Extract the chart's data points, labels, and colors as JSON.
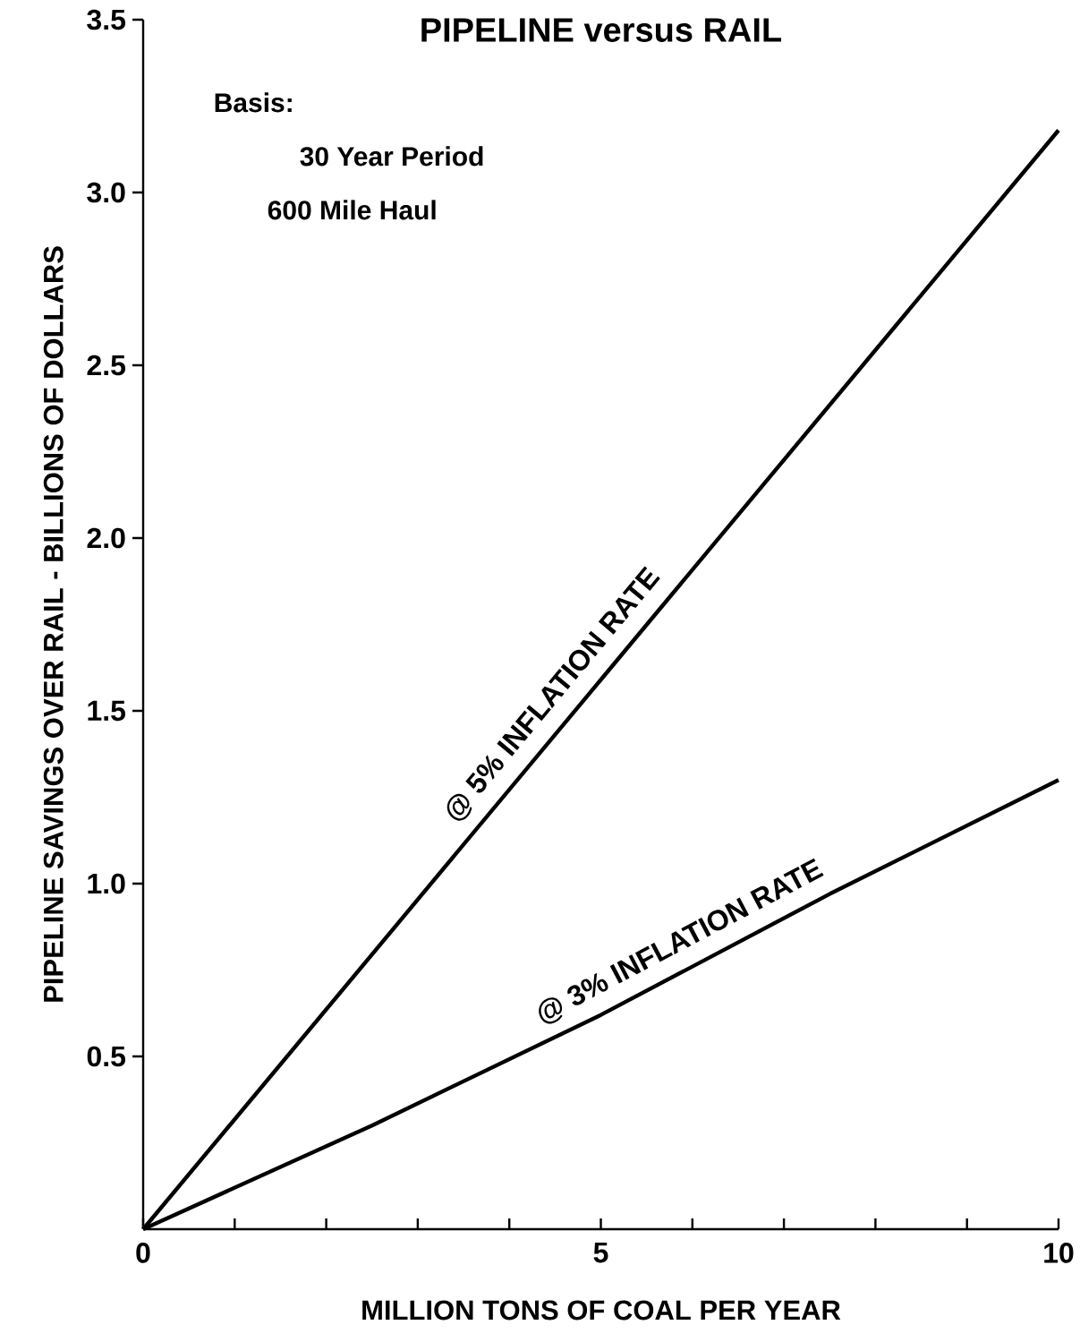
{
  "chart_data": {
    "type": "line",
    "title": "PIPELINE versus RAIL",
    "xlabel": "MILLION TONS OF COAL PER YEAR",
    "ylabel": "PIPELINE SAVINGS OVER RAIL - BILLIONS OF DOLLARS",
    "annotations": [
      "Basis:",
      "30 Year Period",
      "600 Mile Haul"
    ],
    "series": [
      {
        "name": "@ 5% INFLATION RATE",
        "color": "#000000",
        "x": [
          0,
          5,
          10
        ],
        "values": [
          0,
          1.59,
          3.18
        ]
      },
      {
        "name": "@ 3% INFLATION RATE",
        "color": "#000000",
        "x": [
          0,
          2.5,
          5,
          7.5,
          10
        ],
        "values": [
          0,
          0.3,
          0.62,
          0.97,
          1.3
        ]
      }
    ],
    "xlim": [
      0,
      10
    ],
    "ylim": [
      0,
      3.5
    ],
    "xticks": [
      0,
      {
        "value": 1,
        "label": null
      },
      {
        "value": 2,
        "label": null
      },
      {
        "value": 3,
        "label": null
      },
      {
        "value": 4,
        "label": null
      },
      5,
      {
        "value": 6,
        "label": null
      },
      {
        "value": 7,
        "label": null
      },
      {
        "value": 8,
        "label": null
      },
      {
        "value": 9,
        "label": null
      },
      10
    ],
    "yticks": [
      0.5,
      {
        "value": 1,
        "label": "1.0"
      },
      1.5,
      {
        "value": 2,
        "label": "2.0"
      },
      2.5,
      {
        "value": 3,
        "label": "3.0"
      },
      3.5
    ],
    "marker": "none",
    "line_style": "solid"
  }
}
